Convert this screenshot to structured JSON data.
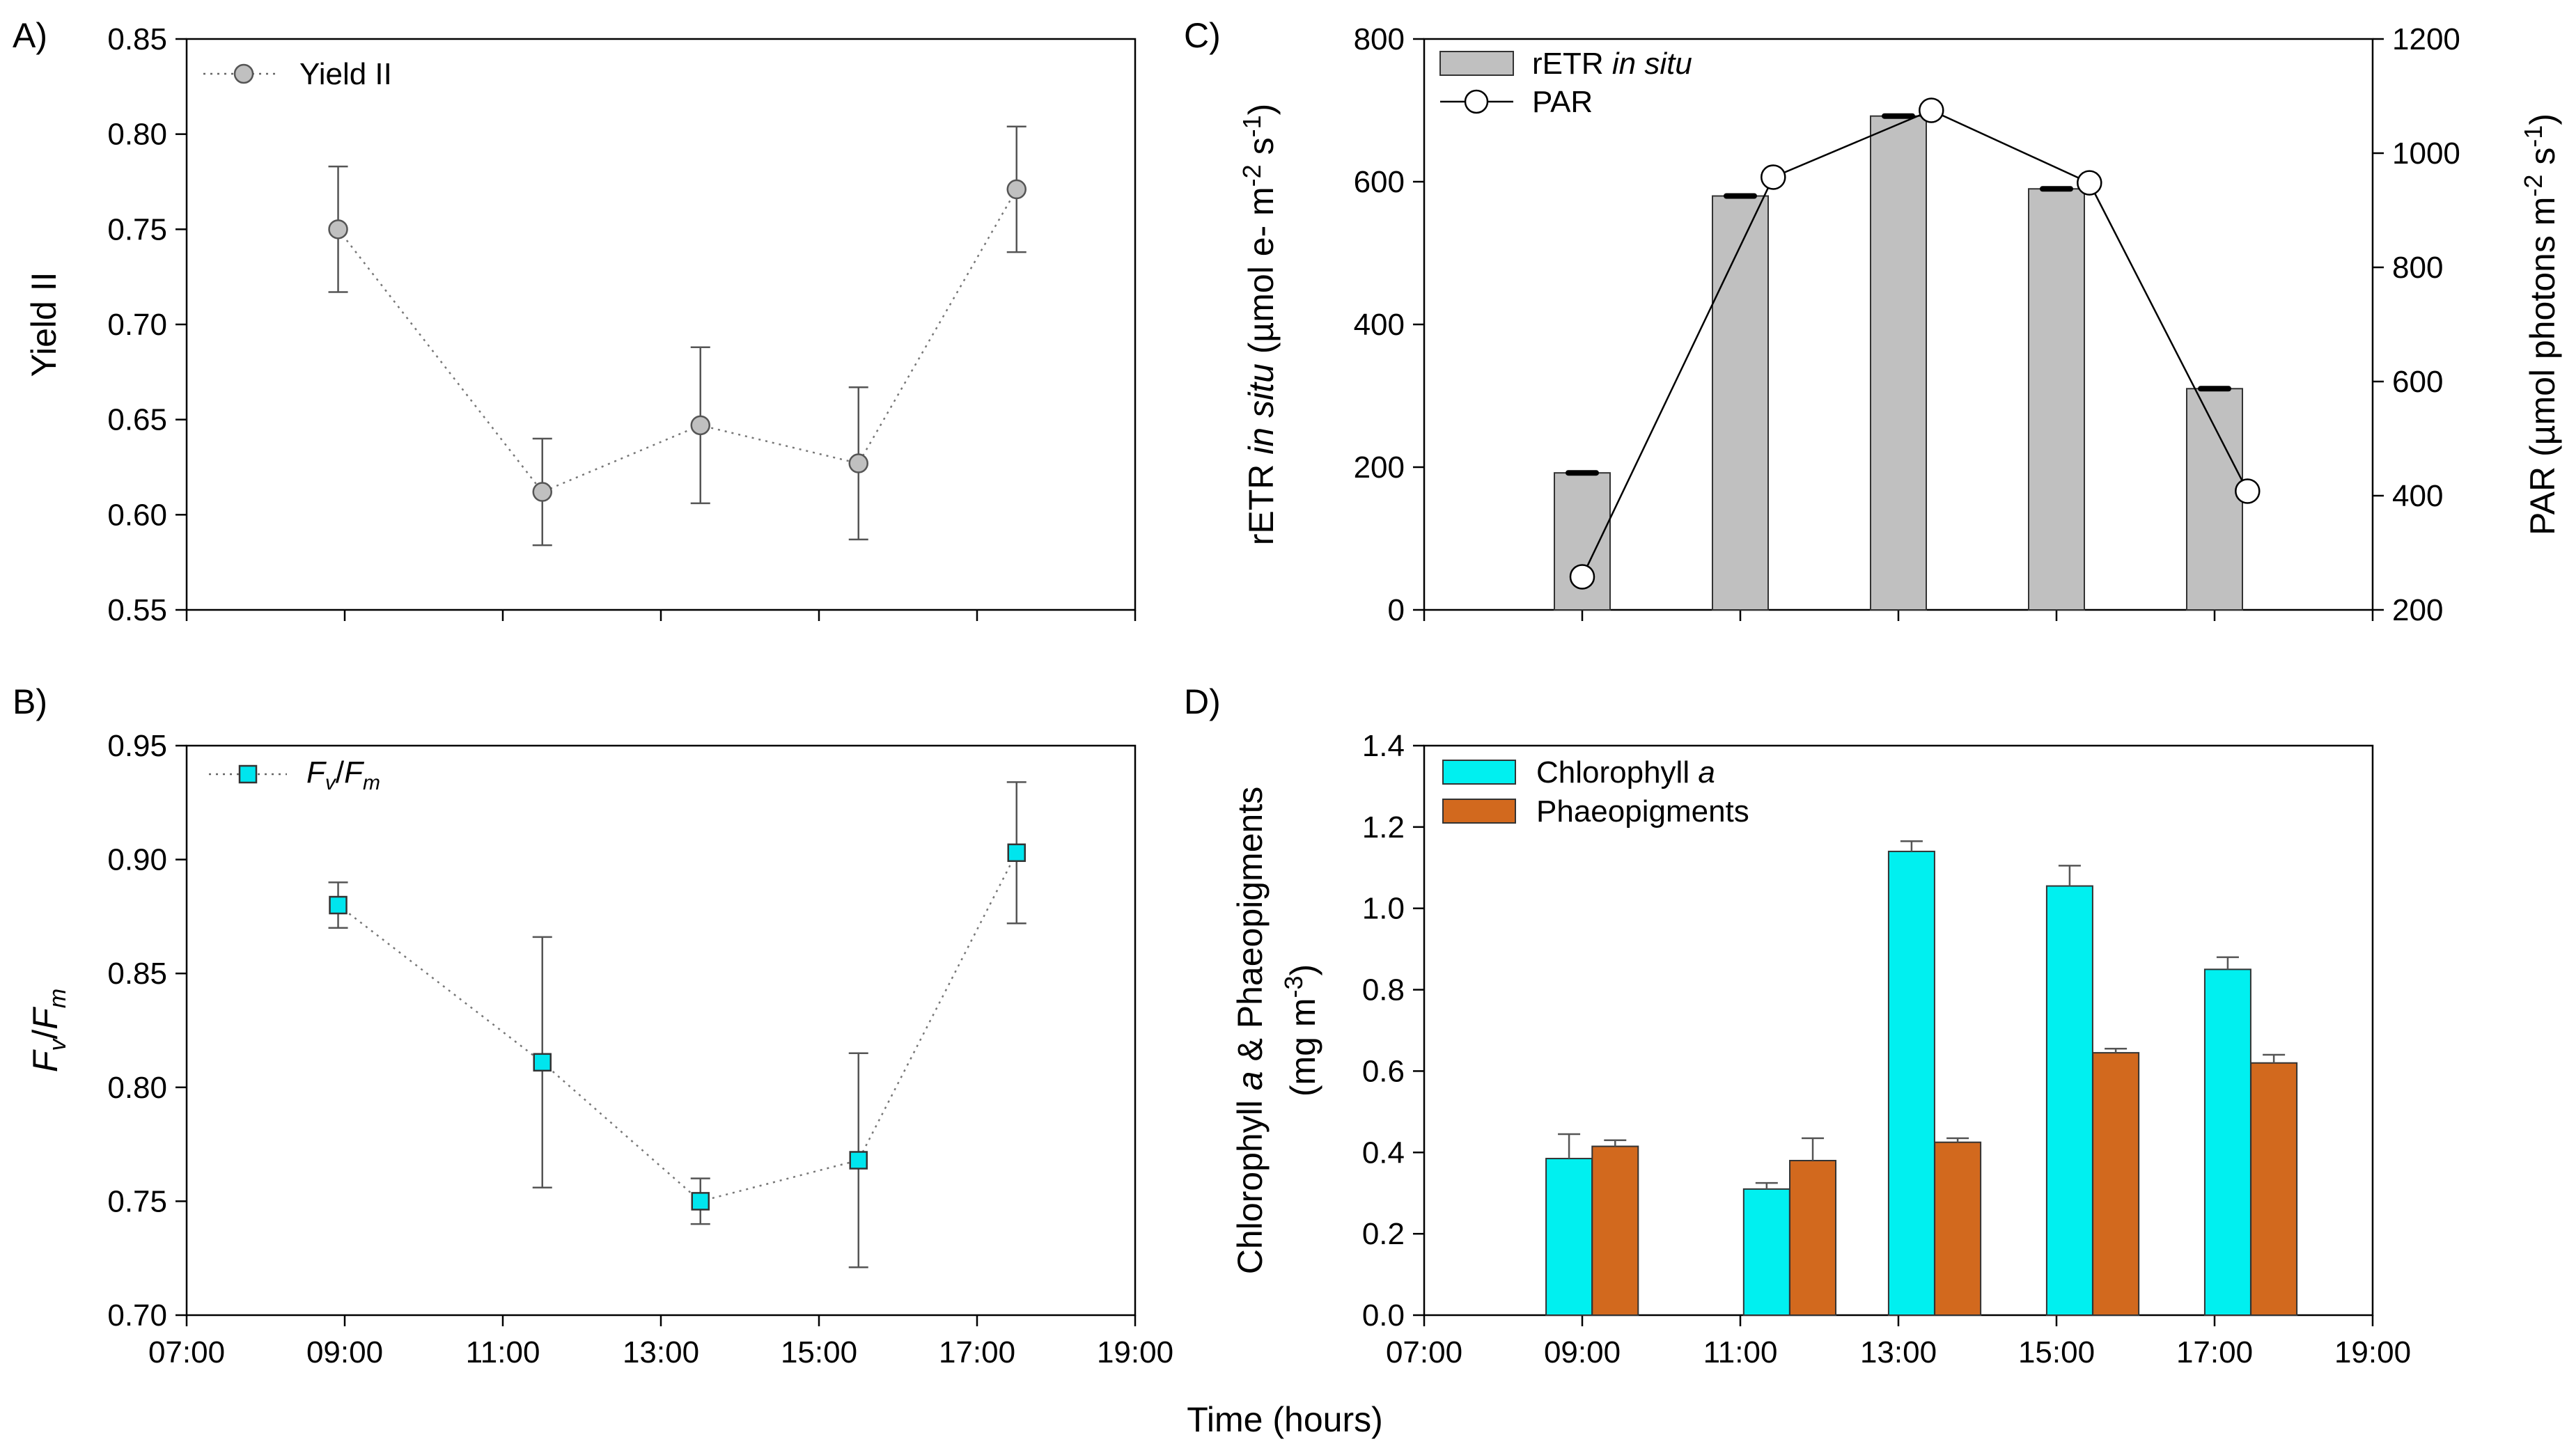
{
  "figure": {
    "xlabel": "Time (hours)",
    "x_ticks": [
      "07:00",
      "09:00",
      "11:00",
      "13:00",
      "15:00",
      "17:00",
      "19:00"
    ]
  },
  "colors": {
    "yield_marker": "#c0c0c0",
    "fvfm_marker": "#00e5ee",
    "retr_bar": "#c0c0c0",
    "chlorophyll": "#00f0f0",
    "phaeopigments": "#d2691e",
    "axis": "#000000",
    "errorbar": "#555555"
  },
  "chart_data": [
    {
      "id": "A",
      "panel_label": "A)",
      "type": "line",
      "ylabel": "Yield II",
      "ylim": [
        0.55,
        0.85
      ],
      "y_ticks": [
        "0.55",
        "0.60",
        "0.65",
        "0.70",
        "0.75",
        "0.80",
        "0.85"
      ],
      "xlim": [
        "07:00",
        "19:00"
      ],
      "series": [
        {
          "name": "Yield II",
          "x": [
            "08:55",
            "11:30",
            "13:30",
            "15:30",
            "17:30"
          ],
          "values": [
            0.75,
            0.612,
            0.647,
            0.627,
            0.771
          ],
          "errors": [
            0.033,
            0.028,
            0.041,
            0.04,
            0.033
          ],
          "line_style": "dotted",
          "marker": "circle"
        }
      ],
      "legend": "top-left"
    },
    {
      "id": "B",
      "panel_label": "B)",
      "type": "line",
      "ylabel_main": "F",
      "ylabel_sub1": "v",
      "ylabel_slash": "/",
      "ylabel_sub2": "m",
      "ylim": [
        0.7,
        0.95
      ],
      "y_ticks": [
        "0.70",
        "0.75",
        "0.80",
        "0.85",
        "0.90",
        "0.95"
      ],
      "xlim": [
        "07:00",
        "19:00"
      ],
      "series": [
        {
          "legend_main": "F",
          "legend_sub1": "v",
          "legend_slash": "/",
          "legend_sub2": "m",
          "x": [
            "08:55",
            "11:30",
            "13:30",
            "15:30",
            "17:30"
          ],
          "values": [
            0.88,
            0.811,
            0.75,
            0.768,
            0.903
          ],
          "errors": [
            0.01,
            0.055,
            0.01,
            0.047,
            0.031
          ],
          "line_style": "dotted",
          "marker": "square"
        }
      ],
      "legend": "top-left"
    },
    {
      "id": "C",
      "panel_label": "C)",
      "type": "bar+line",
      "ylabel_left_a": "rETR ",
      "ylabel_left_b": "in situ",
      "ylabel_left_c": "  (µmol e- m",
      "ylabel_left_sup1": "-2",
      "ylabel_left_d": " s",
      "ylabel_left_sup2": "-1",
      "ylabel_left_e": ")",
      "ylabel_right_a": "PAR (µmol photons m",
      "ylabel_right_sup1": "-2",
      "ylabel_right_b": " s",
      "ylabel_right_sup2": "-1",
      "ylabel_right_c": ")",
      "ylim_left": [
        0,
        800
      ],
      "y_ticks_left": [
        "0",
        "200",
        "400",
        "600",
        "800"
      ],
      "ylim_right": [
        200,
        1200
      ],
      "y_ticks_right": [
        "200",
        "400",
        "600",
        "800",
        "1000",
        "1200"
      ],
      "xlim": [
        "07:00",
        "19:00"
      ],
      "bars": {
        "legend_a": "rETR ",
        "legend_b": "in situ",
        "x": [
          "09:00",
          "11:00",
          "13:00",
          "15:00",
          "17:00"
        ],
        "values": [
          192,
          580,
          692,
          590,
          310
        ]
      },
      "line": {
        "name": "PAR",
        "x": [
          "09:00",
          "11:25",
          "13:25",
          "15:25",
          "17:25"
        ],
        "values": [
          258,
          958,
          1075,
          948,
          408
        ]
      },
      "legend": "top-left"
    },
    {
      "id": "D",
      "panel_label": "D)",
      "type": "bar",
      "ylabel_line1_a": "Chlorophyll ",
      "ylabel_line1_b": "a",
      "ylabel_line1_c": " & Phaeopigments",
      "ylabel_line2_a": "(mg m",
      "ylabel_line2_sup": "-3",
      "ylabel_line2_b": ")",
      "ylim": [
        0.0,
        1.4
      ],
      "y_ticks": [
        "0.0",
        "0.2",
        "0.4",
        "0.6",
        "0.8",
        "1.0",
        "1.2",
        "1.4"
      ],
      "xlim": [
        "07:00",
        "19:00"
      ],
      "categories": [
        "09:00",
        "11:00",
        "13:00",
        "15:00",
        "17:00"
      ],
      "series": [
        {
          "legend_a": "Chlorophyll ",
          "legend_b": "a",
          "x": [
            "08:50",
            "11:20",
            "13:10",
            "15:10",
            "17:10"
          ],
          "values": [
            0.385,
            0.31,
            1.14,
            1.055,
            0.85
          ],
          "errors": [
            0.06,
            0.015,
            0.025,
            0.05,
            0.03
          ]
        },
        {
          "name": "Phaeopigments",
          "x": [
            "09:25",
            "11:55",
            "13:45",
            "15:45",
            "17:45"
          ],
          "values": [
            0.415,
            0.38,
            0.425,
            0.645,
            0.62
          ],
          "errors": [
            0.015,
            0.055,
            0.01,
            0.01,
            0.02
          ]
        }
      ],
      "legend": "top-left"
    }
  ]
}
